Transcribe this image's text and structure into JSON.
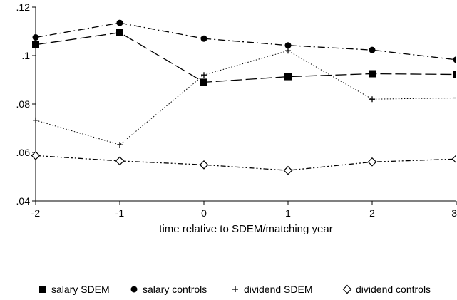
{
  "chart_data": {
    "type": "line",
    "title": "",
    "xlabel": "time relative to SDEM/matching year",
    "ylabel": "",
    "x": [
      -2,
      -1,
      0,
      1,
      2,
      3
    ],
    "x_tick_labels": [
      "-2",
      "-1",
      "0",
      "1",
      "2",
      "3"
    ],
    "xlim": [
      -2,
      3
    ],
    "y_ticks": [
      0.04,
      0.06,
      0.08,
      0.1,
      0.12
    ],
    "y_tick_labels": [
      ".04",
      ".06",
      ".08",
      ".1",
      ".12"
    ],
    "ylim": [
      0.04,
      0.12
    ],
    "grid": false,
    "legend_position": "bottom",
    "series": [
      {
        "name": "salary SDEM",
        "values": [
          0.1045,
          0.1095,
          0.089,
          0.0913,
          0.0925,
          0.0922
        ],
        "marker": "square",
        "line_style": "longdash",
        "color": "#000000"
      },
      {
        "name": "salary controls",
        "values": [
          0.1075,
          0.1135,
          0.107,
          0.1042,
          0.1023,
          0.0983
        ],
        "marker": "circle",
        "line_style": "dashdot",
        "color": "#000000"
      },
      {
        "name": "dividend SDEM",
        "values": [
          0.0733,
          0.0632,
          0.092,
          0.102,
          0.082,
          0.0825
        ],
        "marker": "plus",
        "line_style": "dotted",
        "color": "#000000"
      },
      {
        "name": "dividend controls",
        "values": [
          0.0587,
          0.0565,
          0.0549,
          0.0526,
          0.0561,
          0.0573
        ],
        "marker": "diamond",
        "line_style": "dashdotdot",
        "color": "#000000"
      }
    ]
  }
}
